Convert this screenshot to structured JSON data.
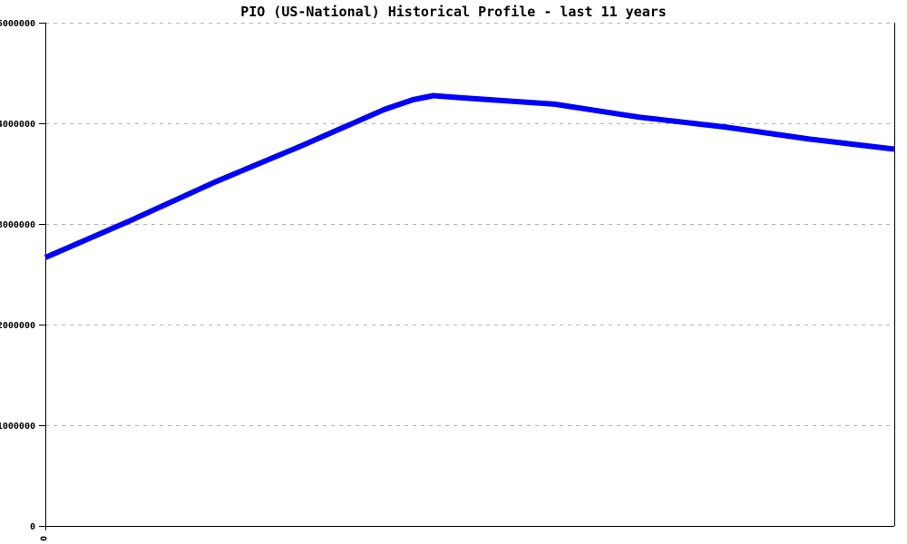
{
  "chart": {
    "title": "PIO (US-National) Historical Profile - last 11 years",
    "colors": {
      "line": "#0000ff",
      "axis": "#000000",
      "grid": "#b3b3b3",
      "text": "#000000",
      "background": "#ffffff"
    }
  },
  "chart_data": {
    "type": "line",
    "title": "PIO (US-National) Historical Profile - last 11 years",
    "xlabel": "",
    "ylabel": "",
    "xlim": [
      0,
      10
    ],
    "ylim": [
      0,
      5000000
    ],
    "grid": "horizontal-dashed",
    "legend": "none",
    "x_ticks": [
      {
        "value": 0,
        "label": "0",
        "rotated": true
      }
    ],
    "y_ticks": [
      {
        "value": 0,
        "label": "0"
      },
      {
        "value": 1000000,
        "label": "1000000"
      },
      {
        "value": 2000000,
        "label": "2000000"
      },
      {
        "value": 3000000,
        "label": "3000000"
      },
      {
        "value": 4000000,
        "label": "4000000"
      },
      {
        "value": 5000000,
        "label": "5000000"
      }
    ],
    "series": [
      {
        "name": "PIO (US-National)",
        "x": [
          0,
          1,
          2,
          3,
          4,
          4.33,
          4.57,
          5,
          6,
          7,
          8,
          9,
          10
        ],
        "y": [
          2667000,
          3032000,
          3417000,
          3770000,
          4140000,
          4234000,
          4275000,
          4248000,
          4190000,
          4060000,
          3964000,
          3843000,
          3743000
        ]
      }
    ]
  }
}
